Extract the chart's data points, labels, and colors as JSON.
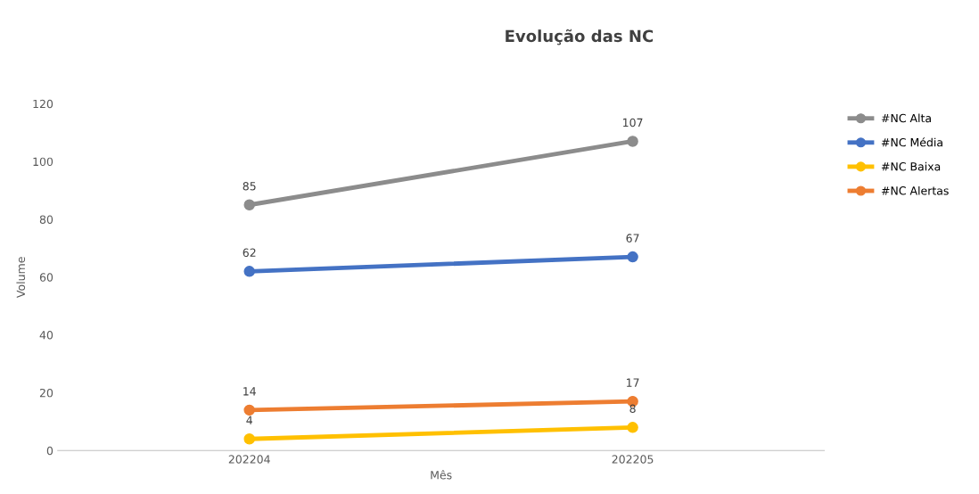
{
  "chart_data": {
    "type": "line",
    "title": "Evolução das NC",
    "xlabel": "Mês",
    "ylabel": "Volume",
    "categories": [
      "202204",
      "202205"
    ],
    "series": [
      {
        "name": "#NC Alta",
        "color": "#8c8c8c",
        "values": [
          85,
          107
        ]
      },
      {
        "name": "#NC Média",
        "color": "#4472c4",
        "values": [
          62,
          67
        ]
      },
      {
        "name": "#NC Baixa",
        "color": "#ffc000",
        "values": [
          4,
          8
        ]
      },
      {
        "name": "#NC Alertas",
        "color": "#ed7d31",
        "values": [
          14,
          17
        ]
      }
    ],
    "ylim": [
      0,
      120
    ],
    "yticks": [
      0,
      20,
      40,
      60,
      80,
      100,
      120
    ],
    "grid": false,
    "legend": "right",
    "marker": "circle",
    "line_style": "solid",
    "data_labels": true
  }
}
